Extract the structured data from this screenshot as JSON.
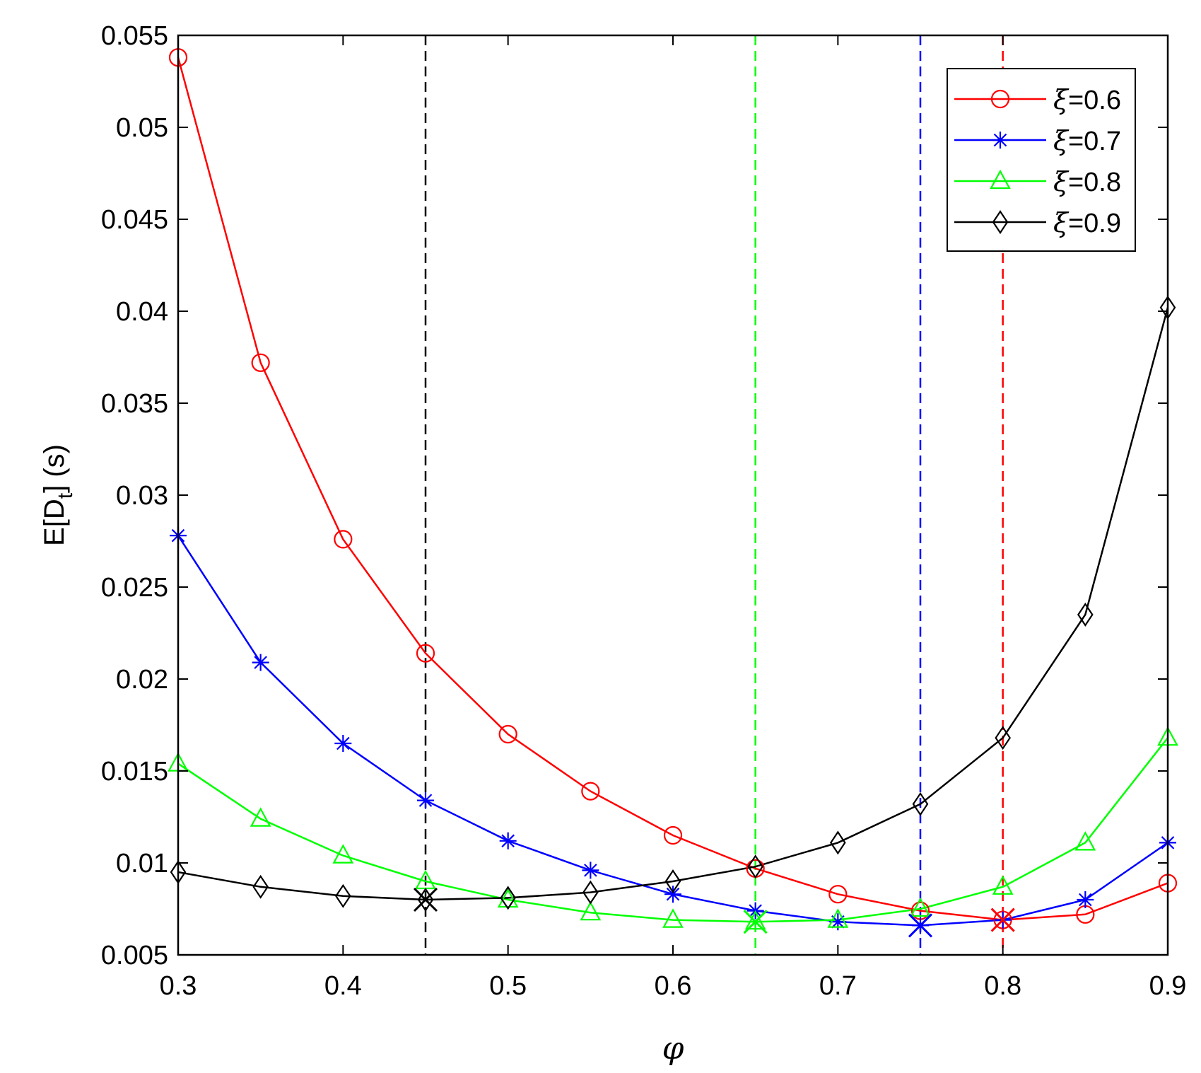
{
  "chart_data": {
    "type": "line",
    "xlabel": "φ",
    "ylabel": "E[D_t] (s)",
    "ylabel_parts": {
      "main": "E[D",
      "sub": "t",
      "tail": "] (s)"
    },
    "xlim": [
      0.3,
      0.9
    ],
    "ylim": [
      0.005,
      0.055
    ],
    "xticks": [
      "0.3",
      "0.4",
      "0.5",
      "0.6",
      "0.7",
      "0.8",
      "0.9"
    ],
    "xtick_values": [
      0.3,
      0.4,
      0.5,
      0.6,
      0.7,
      0.8,
      0.9
    ],
    "yticks": [
      "0.005",
      "0.01",
      "0.015",
      "0.02",
      "0.025",
      "0.03",
      "0.035",
      "0.04",
      "0.045",
      "0.05",
      "0.055"
    ],
    "ytick_values": [
      0.005,
      0.01,
      0.015,
      0.02,
      0.025,
      0.03,
      0.035,
      0.04,
      0.045,
      0.05,
      0.055
    ],
    "x": [
      0.3,
      0.35,
      0.4,
      0.45,
      0.5,
      0.55,
      0.6,
      0.65,
      0.7,
      0.75,
      0.8,
      0.85,
      0.9
    ],
    "grid": false,
    "legend_position": "top-right",
    "series": [
      {
        "name": "ξ=0.6",
        "greek": "ξ",
        "value_label": "=0.6",
        "color": "#ff0000",
        "marker": "circle",
        "values": [
          0.0538,
          0.0372,
          0.0276,
          0.0214,
          0.017,
          0.0139,
          0.0115,
          0.0097,
          0.0083,
          0.0074,
          0.0069,
          0.0072,
          0.0089
        ]
      },
      {
        "name": "ξ=0.7",
        "greek": "ξ",
        "value_label": "=0.7",
        "color": "#0000ff",
        "marker": "asterisk",
        "values": [
          0.0278,
          0.0209,
          0.0165,
          0.0134,
          0.0112,
          0.0096,
          0.0083,
          0.0074,
          0.0068,
          0.0066,
          0.0069,
          0.008,
          0.0111
        ]
      },
      {
        "name": "ξ=0.8",
        "greek": "ξ",
        "value_label": "=0.8",
        "color": "#00ff00",
        "marker": "triangle",
        "values": [
          0.0154,
          0.0124,
          0.0104,
          0.009,
          0.008,
          0.0073,
          0.0069,
          0.0068,
          0.0069,
          0.0075,
          0.0087,
          0.0111,
          0.0168
        ]
      },
      {
        "name": "ξ=0.9",
        "greek": "ξ",
        "value_label": "=0.9",
        "color": "#000000",
        "marker": "diamond",
        "values": [
          0.0095,
          0.0087,
          0.0082,
          0.008,
          0.0081,
          0.0084,
          0.009,
          0.0098,
          0.0111,
          0.0132,
          0.0168,
          0.0235,
          0.0402
        ]
      }
    ],
    "optima": [
      {
        "series": "ξ=0.6",
        "x": 0.8,
        "y": 0.0069,
        "color": "#ff0000"
      },
      {
        "series": "ξ=0.7",
        "x": 0.75,
        "y": 0.0066,
        "color": "#0000ff"
      },
      {
        "series": "ξ=0.8",
        "x": 0.65,
        "y": 0.0068,
        "color": "#00ff00"
      },
      {
        "series": "ξ=0.9",
        "x": 0.45,
        "y": 0.008,
        "color": "#000000"
      }
    ]
  }
}
